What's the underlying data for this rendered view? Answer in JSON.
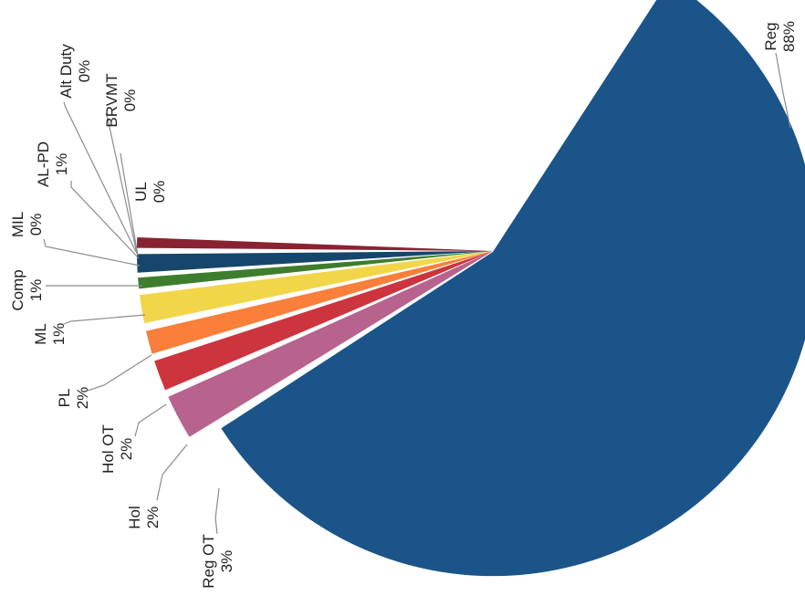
{
  "chart_data": {
    "type": "pie",
    "title": "",
    "orientation": "rotated 90 degrees counter-clockwise",
    "slices": [
      {
        "label": "Reg",
        "value": 88,
        "value_label": "88%",
        "color": "#1b5488"
      },
      {
        "label": "Reg OT",
        "value": 3,
        "value_label": "3%",
        "color": "#b8628e"
      },
      {
        "label": "Hol",
        "value": 2,
        "value_label": "2%",
        "color": "#cc343e"
      },
      {
        "label": "Hol OT",
        "value": 2,
        "value_label": "2%",
        "color": "#f97f3a"
      },
      {
        "label": "PL",
        "value": 2,
        "value_label": "2%",
        "color": "#f2d64a"
      },
      {
        "label": "ML",
        "value": 1,
        "value_label": "1%",
        "color": "#3e7d2d"
      },
      {
        "label": "Comp",
        "value": 1,
        "value_label": "1%",
        "color": "#16466b"
      },
      {
        "label": "MIL",
        "value": 0,
        "value_label": "0%",
        "color": "#8a2232"
      },
      {
        "label": "AL-PD",
        "value": 1,
        "value_label": "1%",
        "color": "#6b2a4a"
      },
      {
        "label": "UL",
        "value": 0,
        "value_label": "0%",
        "color": "#4a4a4a"
      },
      {
        "label": "BRVMT",
        "value": 0,
        "value_label": "0%",
        "color": "#5a5a5a"
      },
      {
        "label": "Alt Duty",
        "value": 0,
        "value_label": "0%",
        "color": "#6a6a6a"
      }
    ]
  }
}
